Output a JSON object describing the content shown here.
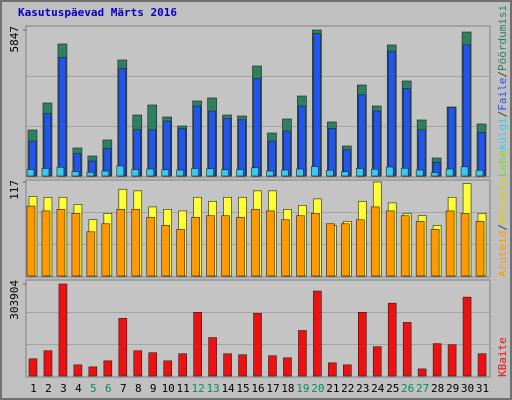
{
  "title": "Kasutuspäevad Märts 2016",
  "legend_separator": "/",
  "chart_data": [
    {
      "type": "bar",
      "ylim": [
        0,
        5847
      ],
      "yticks": [
        5847
      ],
      "series": [
        {
          "name": "Lehekülgi",
          "color": "#33ccee",
          "values": [
            260,
            300,
            350,
            180,
            150,
            200,
            400,
            260,
            280,
            250,
            240,
            300,
            290,
            250,
            260,
            330,
            200,
            240,
            280,
            380,
            230,
            170,
            300,
            270,
            360,
            310,
            240,
            140,
            280,
            370,
            230
          ]
        },
        {
          "name": "Faile",
          "color": "#2255ee",
          "values": [
            1400,
            2500,
            4750,
            900,
            600,
            1100,
            4300,
            1850,
            1850,
            2200,
            1900,
            2800,
            2600,
            2300,
            2250,
            3900,
            1400,
            1800,
            2800,
            5700,
            1900,
            1050,
            3250,
            2600,
            5000,
            3500,
            1850,
            550,
            2750,
            5250,
            1750
          ]
        },
        {
          "name": "Pöördumisi",
          "color": "#2e8060",
          "values": [
            1842,
            2924,
            5287,
            1121,
            801,
            1442,
            4646,
            2443,
            2844,
            2363,
            2003,
            3004,
            3124,
            2443,
            2403,
            4406,
            1722,
            2283,
            3204,
            5847,
            2163,
            1202,
            3645,
            2804,
            5247,
            3805,
            2243,
            721,
            2764,
            5767,
            2083
          ]
        }
      ]
    },
    {
      "type": "bar",
      "ylim": [
        0,
        117
      ],
      "yticks": [
        117
      ],
      "series": [
        {
          "name": "Aruteid",
          "color": "#ff9900",
          "values": [
            87,
            81,
            83,
            78,
            55,
            65,
            83,
            83,
            73,
            63,
            58,
            73,
            75,
            75,
            73,
            83,
            81,
            70,
            75,
            78,
            65,
            65,
            70,
            86,
            81,
            75,
            68,
            58,
            81,
            78,
            68
          ]
        },
        {
          "name": "Külastajaid",
          "color": "#ffff33",
          "values": [
            99,
            98,
            98,
            89,
            70,
            78,
            108,
            106,
            86,
            83,
            81,
            98,
            93,
            98,
            98,
            106,
            106,
            83,
            88,
            96,
            63,
            68,
            93,
            117,
            91,
            78,
            75,
            63,
            98,
            115,
            78
          ]
        }
      ]
    },
    {
      "type": "bar",
      "ylim": [
        0,
        303904
      ],
      "yticks": [
        303904
      ],
      "categories": [
        "1",
        "2",
        "3",
        "4",
        "5",
        "6",
        "7",
        "8",
        "9",
        "10",
        "11",
        "12",
        "13",
        "14",
        "15",
        "16",
        "17",
        "18",
        "19",
        "20",
        "21",
        "22",
        "23",
        "24",
        "25",
        "26",
        "27",
        "28",
        "29",
        "30",
        "31"
      ],
      "weekends": [
        4,
        5,
        11,
        12,
        18,
        19,
        25,
        26
      ],
      "weekend_color": "#009060",
      "series": [
        {
          "name": "KBaite",
          "color": "#ee1111",
          "values": [
            56773,
            83490,
            303904,
            36736,
            30056,
            50094,
            190357,
            83490,
            76811,
            50094,
            73471,
            210395,
            126905,
            73471,
            70132,
            207055,
            66792,
            60113,
            150282,
            280526,
            43415,
            36736,
            210395,
            96848,
            240451,
            176999,
            23377,
            106867,
            103528,
            260489,
            73471
          ]
        }
      ]
    }
  ]
}
